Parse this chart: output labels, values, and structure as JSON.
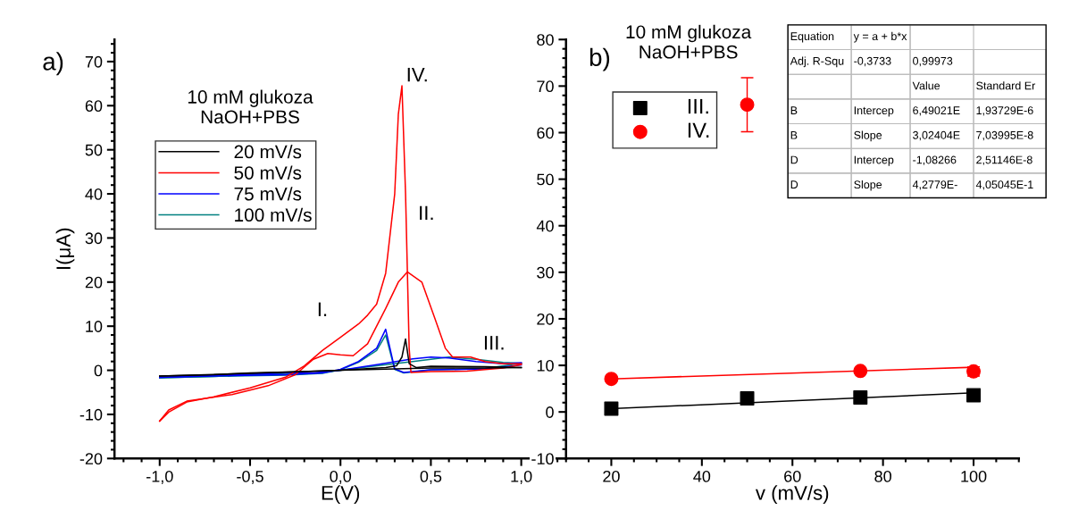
{
  "chart_data": [
    {
      "type": "line",
      "xlabel": "E(V)",
      "ylabel": "I(μA)",
      "xlim": [
        -1.25,
        1.25
      ],
      "xticks": [
        {
          "value": -1.0,
          "label": "-1,0"
        },
        {
          "value": -0.5,
          "label": "-0,5"
        },
        {
          "value": 0.0,
          "label": "0,0"
        },
        {
          "value": 0.5,
          "label": "0,5"
        },
        {
          "value": 1.0,
          "label": "1,0"
        }
      ],
      "ylim": [
        -20,
        75
      ],
      "yticks": [
        -20,
        -10,
        0,
        10,
        20,
        30,
        40,
        50,
        60,
        70
      ],
      "legend": "top left",
      "grid": false,
      "annotations": [
        "a)",
        "10 mM glukoza\nNaOH+PBS",
        "I.",
        "II.",
        "III.",
        "IV."
      ],
      "series": [
        {
          "name": "20 mV/s",
          "color": "#000000",
          "x": [
            -1.0,
            -0.7,
            -0.5,
            -0.2,
            0.0,
            0.2,
            0.3,
            0.5,
            0.8,
            1.0
          ],
          "values": [
            -1.3,
            -1.0,
            -0.6,
            -0.3,
            0.0,
            0.2,
            0.3,
            0.5,
            0.5,
            0.6
          ]
        },
        {
          "color": "#000000",
          "x": [
            -1.0,
            -0.5,
            0.0,
            0.25,
            0.31,
            0.34,
            0.36,
            0.38,
            0.42,
            0.5,
            0.8,
            1.0
          ],
          "values": [
            -1.3,
            -0.7,
            0.0,
            0.6,
            1.0,
            3.0,
            7.1,
            1.5,
            0.6,
            0.9,
            0.8,
            0.6
          ]
        },
        {
          "name": "50 mV/s",
          "color": "#ff0000",
          "x": [
            -1.0,
            -0.95,
            -0.85,
            -0.6,
            -0.4,
            -0.25,
            -0.15,
            -0.07,
            0.0,
            0.07,
            0.15,
            0.25,
            0.32,
            0.37,
            0.45,
            0.52,
            0.58,
            0.62,
            0.72,
            0.8,
            0.9,
            1.0
          ],
          "values": [
            -11.5,
            -9.0,
            -7.0,
            -5.5,
            -3.5,
            -1.0,
            2.5,
            3.8,
            3.5,
            3.3,
            6.0,
            14.0,
            20.0,
            22.3,
            20.0,
            12.0,
            5.0,
            3.0,
            3.0,
            2.0,
            1.5,
            1.5
          ]
        },
        {
          "color": "#ff0000",
          "x": [
            -1.0,
            -0.95,
            -0.85,
            -0.7,
            -0.5,
            -0.3,
            -0.2,
            -0.1,
            0.0,
            0.1,
            0.15,
            0.2,
            0.25,
            0.3,
            0.32,
            0.34,
            0.36,
            0.38,
            0.39,
            0.5,
            0.7,
            0.9,
            1.0
          ],
          "values": [
            -11.5,
            -9.5,
            -7.2,
            -6.0,
            -4.0,
            -1.5,
            1.0,
            4.5,
            7.5,
            10.5,
            12.5,
            15.0,
            22.0,
            40.0,
            58.0,
            64.5,
            40.0,
            5.0,
            -0.5,
            -0.3,
            -0.2,
            0.5,
            1.3
          ]
        },
        {
          "name": "75 mV/s",
          "color": "#0000ff",
          "x": [
            -1.0,
            -0.7,
            -0.3,
            -0.15,
            0.0,
            0.2,
            0.4,
            0.5,
            0.6,
            0.75,
            0.9,
            1.0
          ],
          "values": [
            -1.6,
            -1.2,
            -0.6,
            -0.6,
            0.0,
            1.3,
            2.6,
            3.0,
            2.8,
            2.0,
            1.5,
            1.7
          ]
        },
        {
          "color": "#0000ff",
          "x": [
            -1.0,
            -0.6,
            -0.3,
            -0.1,
            0.0,
            0.1,
            0.2,
            0.25,
            0.3,
            0.35,
            0.5,
            0.8,
            1.0
          ],
          "values": [
            -1.6,
            -1.2,
            -1.0,
            -0.6,
            0.2,
            2.0,
            5.0,
            9.3,
            0.3,
            -0.5,
            0.1,
            0.3,
            1.2
          ]
        },
        {
          "name": "100 mV/s",
          "color": "#008080",
          "x": [
            -1.0,
            -0.7,
            -0.3,
            -0.15,
            0.0,
            0.2,
            0.4,
            0.6,
            0.75,
            0.9,
            1.0
          ],
          "values": [
            -1.7,
            -1.4,
            -0.7,
            -0.7,
            0.0,
            1.0,
            2.0,
            3.0,
            2.5,
            1.8,
            1.6
          ]
        },
        {
          "color": "#008080",
          "x": [
            -1.0,
            -0.6,
            -0.3,
            -0.1,
            0.0,
            0.1,
            0.2,
            0.25,
            0.3,
            0.35,
            0.5,
            0.8,
            1.0
          ],
          "values": [
            -1.7,
            -1.3,
            -1.1,
            -0.7,
            0.1,
            1.8,
            4.5,
            8.0,
            0.2,
            -0.6,
            0.1,
            0.4,
            1.6
          ]
        }
      ]
    },
    {
      "type": "scatter",
      "xlabel": "v (mV/s)",
      "xlim": [
        10,
        110
      ],
      "xticks": [
        20,
        40,
        60,
        80,
        100
      ],
      "ylim": [
        -10,
        80
      ],
      "yticks": [
        -10,
        0,
        10,
        20,
        30,
        40,
        50,
        60,
        70,
        80
      ],
      "legend": "top left",
      "grid": false,
      "annotations": [
        "b)",
        "10 mM glukoza\nNaOH+PBS",
        "Equation\ty = a + b*x\t",
        "Adj. R-Squ\t-0,3733\t0,99973\t",
        "\t\tValue\tStandard Er",
        "B\tIntercep\t6,49021E\t1,93729E-6",
        "B\tSlope\t3,02404E\t7,03995E-8",
        "D\tIntercep\t-1,08266\t2,51146E-8",
        "D\tSlope\t4,2779E-\t4,05045E-1"
      ],
      "series": [
        {
          "name": "III.",
          "color": "#000000",
          "marker": "square",
          "x": [
            20,
            50,
            75,
            100
          ],
          "values": [
            0.7,
            2.9,
            3.1,
            3.6
          ]
        },
        {
          "name": "IV.",
          "color": "#ff0000",
          "marker": "circle",
          "x": [
            20,
            50,
            75,
            100
          ],
          "values": [
            7.1,
            66.0,
            8.8,
            8.7
          ],
          "errors": [
            null,
            5.8,
            null,
            1.0
          ]
        },
        {
          "type": "line",
          "color": "#000000",
          "x": [
            20,
            100
          ],
          "values": [
            0.7,
            4.1
          ]
        },
        {
          "type": "line",
          "color": "#ff0000",
          "x": [
            20,
            100
          ],
          "values": [
            7.1,
            9.6
          ]
        }
      ]
    }
  ]
}
